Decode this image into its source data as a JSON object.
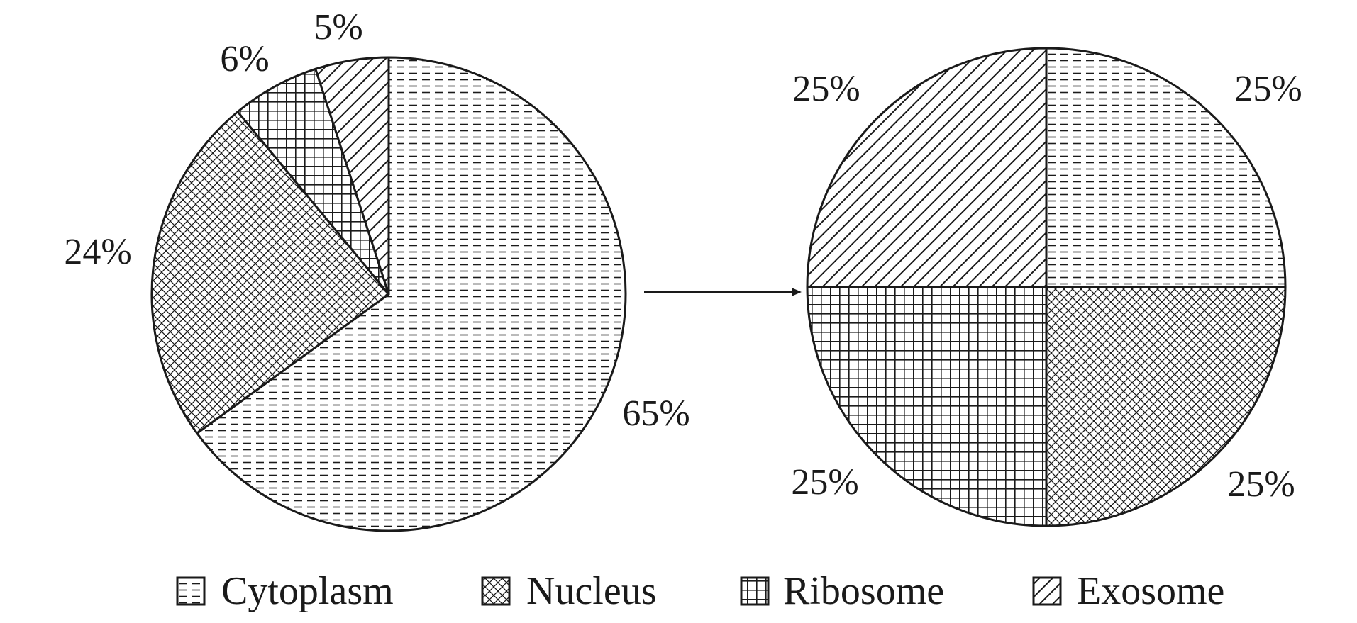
{
  "chart_data": [
    {
      "type": "pie",
      "categories": [
        "Cytoplasm",
        "Nucleus",
        "Ribosome",
        "Exosome"
      ],
      "values": [
        65,
        24,
        6,
        5
      ],
      "labels": [
        "65%",
        "24%",
        "6%",
        "5%"
      ]
    },
    {
      "type": "pie",
      "categories": [
        "Cytoplasm",
        "Nucleus",
        "Ribosome",
        "Exosome"
      ],
      "values": [
        25,
        25,
        25,
        25
      ],
      "labels": [
        "25%",
        "25%",
        "25%",
        "25%"
      ]
    }
  ],
  "legend": [
    {
      "label": "Cytoplasm",
      "pattern": "cytoplasm-pattern-icon"
    },
    {
      "label": "Nucleus",
      "pattern": "nucleus-pattern-icon"
    },
    {
      "label": "Ribosome",
      "pattern": "ribosome-pattern-icon"
    },
    {
      "label": "Exosome",
      "pattern": "exosome-pattern-icon"
    }
  ],
  "colors": {
    "ink": "#1a1a1a",
    "background": "#ffffff"
  }
}
